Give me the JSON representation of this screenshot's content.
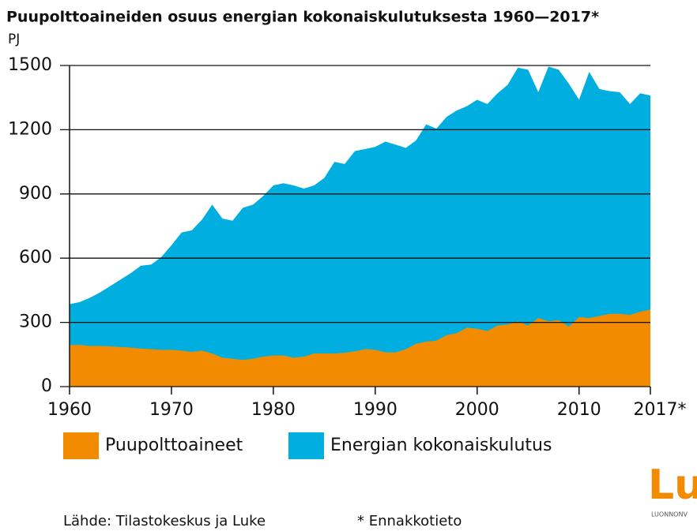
{
  "chart_data": {
    "type": "area",
    "title": "Puupolttoaineiden osuus energian kokonaiskulutuksesta 1960—2017*",
    "y_unit": "PJ",
    "x": [
      1960,
      1961,
      1962,
      1963,
      1964,
      1965,
      1966,
      1967,
      1968,
      1969,
      1970,
      1971,
      1972,
      1973,
      1974,
      1975,
      1976,
      1977,
      1978,
      1979,
      1980,
      1981,
      1982,
      1983,
      1984,
      1985,
      1986,
      1987,
      1988,
      1989,
      1990,
      1991,
      1992,
      1993,
      1994,
      1995,
      1996,
      1997,
      1998,
      1999,
      2000,
      2001,
      2002,
      2003,
      2004,
      2005,
      2006,
      2007,
      2008,
      2009,
      2010,
      2011,
      2012,
      2013,
      2014,
      2015,
      2016,
      2017
    ],
    "series": [
      {
        "name": "Energian kokonaiskulutus",
        "color": "#00afdf",
        "values": [
          385,
          395,
          415,
          440,
          470,
          500,
          530,
          565,
          570,
          605,
          660,
          720,
          730,
          780,
          850,
          785,
          775,
          835,
          850,
          890,
          940,
          950,
          940,
          925,
          940,
          975,
          1050,
          1040,
          1100,
          1110,
          1120,
          1145,
          1130,
          1115,
          1150,
          1225,
          1205,
          1260,
          1290,
          1310,
          1340,
          1320,
          1370,
          1410,
          1490,
          1480,
          1375,
          1495,
          1480,
          1415,
          1340,
          1470,
          1390,
          1380,
          1375,
          1320,
          1370,
          1360
        ]
      },
      {
        "name": "Puupolttoaineet",
        "color": "#f28b00",
        "values": [
          195,
          195,
          190,
          190,
          188,
          185,
          182,
          178,
          175,
          172,
          172,
          168,
          162,
          168,
          155,
          135,
          130,
          125,
          130,
          140,
          145,
          145,
          135,
          140,
          155,
          155,
          155,
          158,
          165,
          175,
          172,
          160,
          160,
          175,
          200,
          210,
          215,
          240,
          250,
          275,
          270,
          260,
          285,
          290,
          305,
          285,
          320,
          305,
          310,
          280,
          325,
          320,
          330,
          340,
          340,
          335,
          350,
          360
        ]
      }
    ],
    "legend_order": [
      1,
      0
    ],
    "xlim": [
      1960,
      2017
    ],
    "xticks": [
      1960,
      1970,
      1980,
      1990,
      2000,
      2010,
      {
        "value": 2017,
        "label": "2017*"
      }
    ],
    "ylim": [
      0,
      1500
    ],
    "yticks": [
      0,
      300,
      600,
      900,
      1200,
      1500
    ],
    "grid": true,
    "source": "Lähde: Tilastokeskus ja Luke",
    "note": "* Ennakkotieto",
    "logo": "Lu",
    "logo_sub": "LUONNONV"
  }
}
